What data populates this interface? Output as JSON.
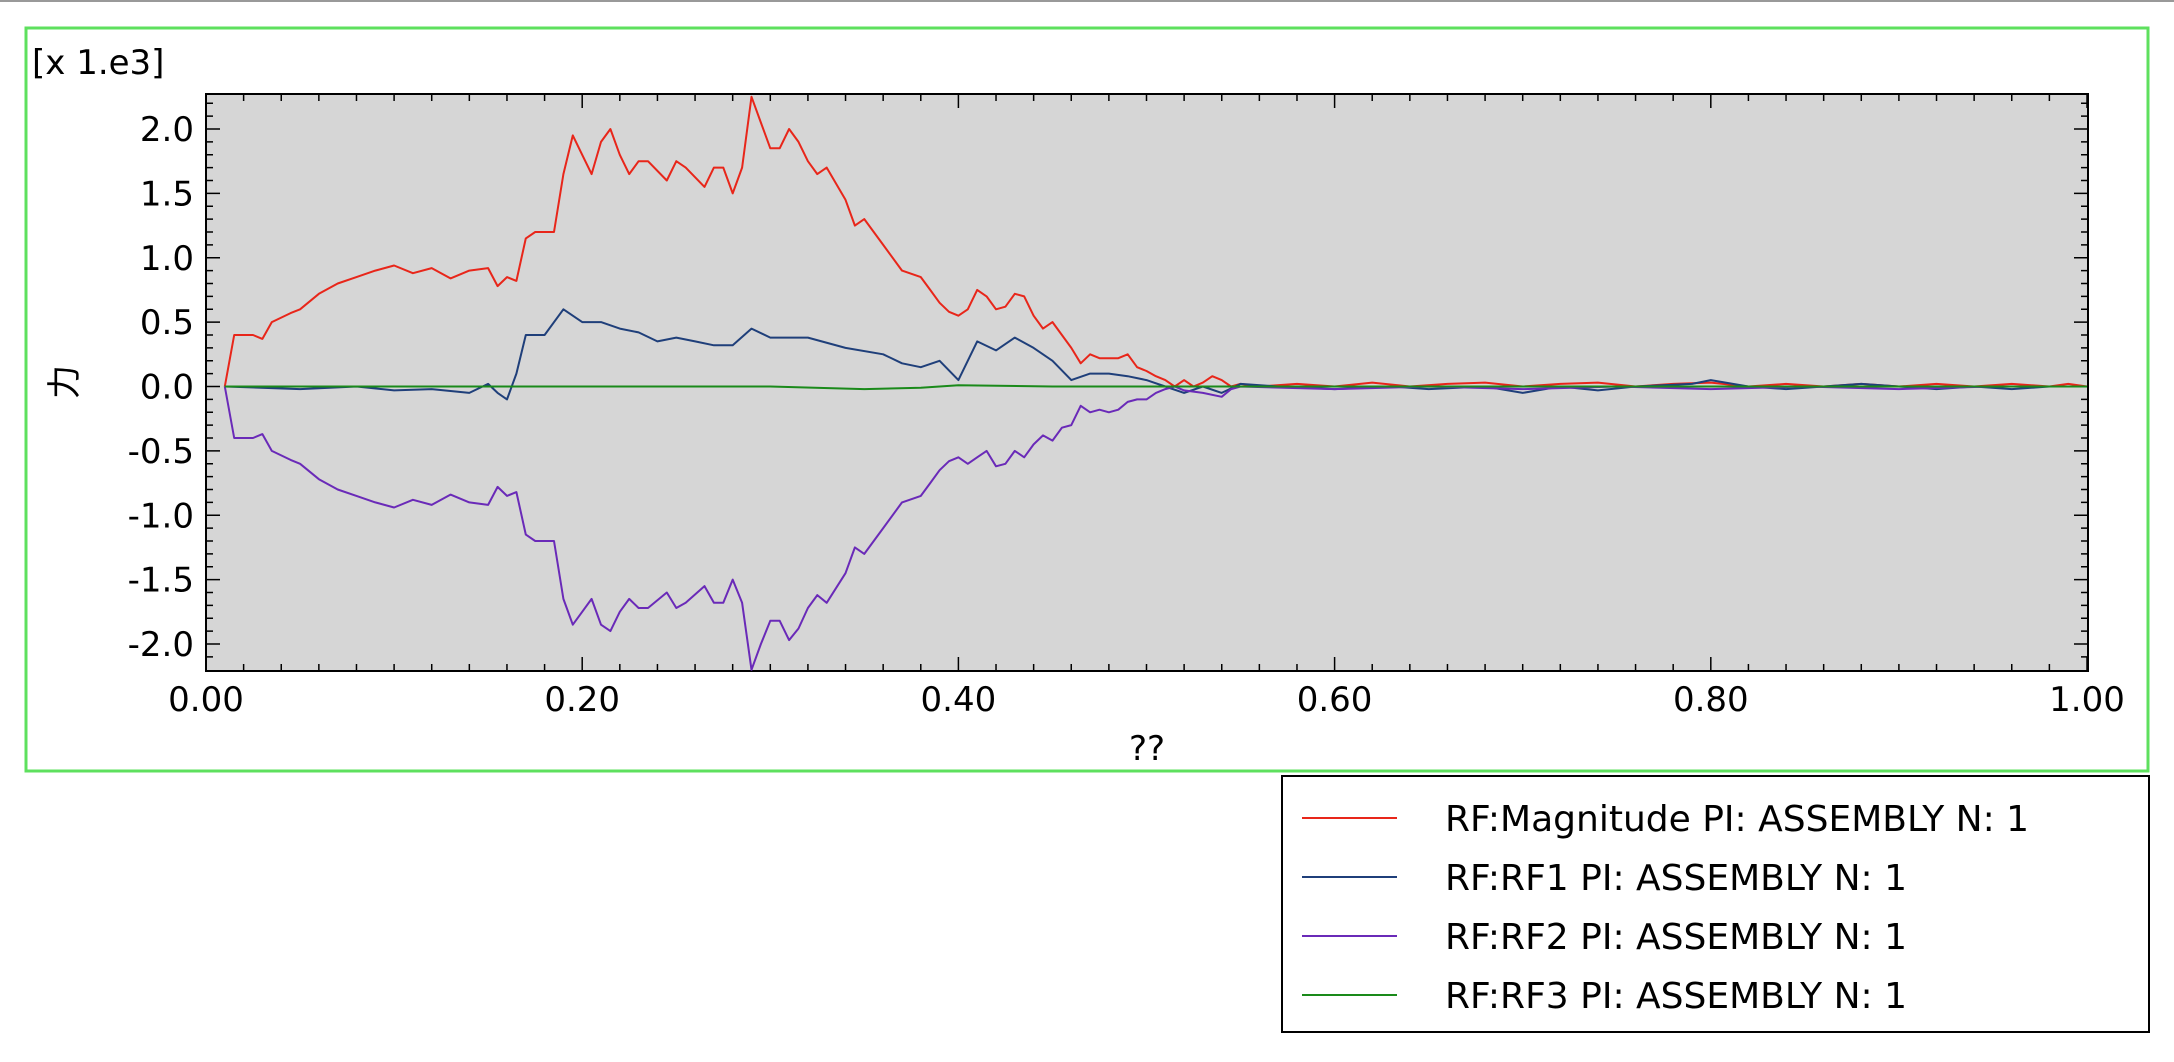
{
  "chart_data": {
    "type": "line",
    "scale_label": "[x 1.e3]",
    "xlabel": "??",
    "ylabel": "力",
    "xlim": [
      0.0,
      1.0
    ],
    "ylim": [
      -2.2,
      2.25
    ],
    "x_ticks": [
      "0.00",
      "0.20",
      "0.40",
      "0.60",
      "0.80",
      "1.00"
    ],
    "x_tick_values": [
      0.0,
      0.2,
      0.4,
      0.6,
      0.8,
      1.0
    ],
    "y_ticks": [
      "2.0",
      "1.5",
      "1.0",
      "0.5",
      "0.0",
      "-0.5",
      "-1.0",
      "-1.5",
      "-2.0"
    ],
    "y_tick_values": [
      2.0,
      1.5,
      1.0,
      0.5,
      0.0,
      -0.5,
      -1.0,
      -1.5,
      -2.0
    ],
    "grid": false,
    "legend_position": "bottom-right",
    "plot_background": "#d6d6d6",
    "frame_color": "#5ee05e",
    "series": [
      {
        "name": "RF:Magnitude PI: ASSEMBLY N: 1",
        "color": "#e8261a",
        "points": [
          [
            0.01,
            0.0
          ],
          [
            0.015,
            0.4
          ],
          [
            0.025,
            0.4
          ],
          [
            0.03,
            0.37
          ],
          [
            0.035,
            0.5
          ],
          [
            0.045,
            0.57
          ],
          [
            0.05,
            0.6
          ],
          [
            0.06,
            0.72
          ],
          [
            0.07,
            0.8
          ],
          [
            0.08,
            0.85
          ],
          [
            0.09,
            0.9
          ],
          [
            0.1,
            0.94
          ],
          [
            0.11,
            0.88
          ],
          [
            0.12,
            0.92
          ],
          [
            0.13,
            0.84
          ],
          [
            0.14,
            0.9
          ],
          [
            0.15,
            0.92
          ],
          [
            0.155,
            0.78
          ],
          [
            0.16,
            0.85
          ],
          [
            0.165,
            0.82
          ],
          [
            0.17,
            1.15
          ],
          [
            0.175,
            1.2
          ],
          [
            0.185,
            1.2
          ],
          [
            0.19,
            1.65
          ],
          [
            0.195,
            1.95
          ],
          [
            0.2,
            1.8
          ],
          [
            0.205,
            1.65
          ],
          [
            0.21,
            1.9
          ],
          [
            0.215,
            2.0
          ],
          [
            0.22,
            1.8
          ],
          [
            0.225,
            1.65
          ],
          [
            0.23,
            1.75
          ],
          [
            0.235,
            1.75
          ],
          [
            0.245,
            1.6
          ],
          [
            0.25,
            1.75
          ],
          [
            0.255,
            1.7
          ],
          [
            0.265,
            1.55
          ],
          [
            0.27,
            1.7
          ],
          [
            0.275,
            1.7
          ],
          [
            0.28,
            1.5
          ],
          [
            0.285,
            1.7
          ],
          [
            0.29,
            2.25
          ],
          [
            0.295,
            2.05
          ],
          [
            0.3,
            1.85
          ],
          [
            0.305,
            1.85
          ],
          [
            0.31,
            2.0
          ],
          [
            0.315,
            1.9
          ],
          [
            0.32,
            1.75
          ],
          [
            0.325,
            1.65
          ],
          [
            0.33,
            1.7
          ],
          [
            0.34,
            1.45
          ],
          [
            0.345,
            1.25
          ],
          [
            0.35,
            1.3
          ],
          [
            0.36,
            1.1
          ],
          [
            0.37,
            0.9
          ],
          [
            0.38,
            0.85
          ],
          [
            0.385,
            0.75
          ],
          [
            0.39,
            0.65
          ],
          [
            0.395,
            0.58
          ],
          [
            0.4,
            0.55
          ],
          [
            0.405,
            0.6
          ],
          [
            0.41,
            0.75
          ],
          [
            0.415,
            0.7
          ],
          [
            0.42,
            0.6
          ],
          [
            0.425,
            0.62
          ],
          [
            0.43,
            0.72
          ],
          [
            0.435,
            0.7
          ],
          [
            0.44,
            0.55
          ],
          [
            0.445,
            0.45
          ],
          [
            0.45,
            0.5
          ],
          [
            0.455,
            0.4
          ],
          [
            0.46,
            0.3
          ],
          [
            0.465,
            0.18
          ],
          [
            0.47,
            0.25
          ],
          [
            0.475,
            0.22
          ],
          [
            0.48,
            0.22
          ],
          [
            0.485,
            0.22
          ],
          [
            0.49,
            0.25
          ],
          [
            0.495,
            0.15
          ],
          [
            0.5,
            0.12
          ],
          [
            0.505,
            0.08
          ],
          [
            0.51,
            0.05
          ],
          [
            0.515,
            0.0
          ],
          [
            0.52,
            0.05
          ],
          [
            0.525,
            0.0
          ],
          [
            0.53,
            0.03
          ],
          [
            0.535,
            0.08
          ],
          [
            0.54,
            0.05
          ],
          [
            0.545,
            0.0
          ],
          [
            0.55,
            0.02
          ],
          [
            0.56,
            0.0
          ],
          [
            0.58,
            0.02
          ],
          [
            0.6,
            0.0
          ],
          [
            0.62,
            0.03
          ],
          [
            0.64,
            0.0
          ],
          [
            0.66,
            0.02
          ],
          [
            0.68,
            0.03
          ],
          [
            0.7,
            0.0
          ],
          [
            0.72,
            0.02
          ],
          [
            0.74,
            0.03
          ],
          [
            0.76,
            0.0
          ],
          [
            0.78,
            0.02
          ],
          [
            0.8,
            0.03
          ],
          [
            0.82,
            0.0
          ],
          [
            0.84,
            0.02
          ],
          [
            0.86,
            0.0
          ],
          [
            0.88,
            0.02
          ],
          [
            0.9,
            0.0
          ],
          [
            0.92,
            0.02
          ],
          [
            0.94,
            0.0
          ],
          [
            0.96,
            0.02
          ],
          [
            0.98,
            0.0
          ],
          [
            0.99,
            0.02
          ],
          [
            1.0,
            0.0
          ]
        ]
      },
      {
        "name": "RF:RF1 PI: ASSEMBLY N: 1",
        "color": "#1f3f7a",
        "points": [
          [
            0.01,
            0.0
          ],
          [
            0.05,
            -0.02
          ],
          [
            0.08,
            0.0
          ],
          [
            0.1,
            -0.03
          ],
          [
            0.12,
            -0.02
          ],
          [
            0.14,
            -0.05
          ],
          [
            0.15,
            0.02
          ],
          [
            0.155,
            -0.05
          ],
          [
            0.16,
            -0.1
          ],
          [
            0.165,
            0.1
          ],
          [
            0.17,
            0.4
          ],
          [
            0.18,
            0.4
          ],
          [
            0.19,
            0.6
          ],
          [
            0.2,
            0.5
          ],
          [
            0.21,
            0.5
          ],
          [
            0.22,
            0.45
          ],
          [
            0.23,
            0.42
          ],
          [
            0.24,
            0.35
          ],
          [
            0.25,
            0.38
          ],
          [
            0.26,
            0.35
          ],
          [
            0.27,
            0.32
          ],
          [
            0.28,
            0.32
          ],
          [
            0.29,
            0.45
          ],
          [
            0.3,
            0.38
          ],
          [
            0.32,
            0.38
          ],
          [
            0.34,
            0.3
          ],
          [
            0.36,
            0.25
          ],
          [
            0.37,
            0.18
          ],
          [
            0.38,
            0.15
          ],
          [
            0.39,
            0.2
          ],
          [
            0.4,
            0.05
          ],
          [
            0.41,
            0.35
          ],
          [
            0.42,
            0.28
          ],
          [
            0.43,
            0.38
          ],
          [
            0.44,
            0.3
          ],
          [
            0.45,
            0.2
          ],
          [
            0.46,
            0.05
          ],
          [
            0.47,
            0.1
          ],
          [
            0.48,
            0.1
          ],
          [
            0.49,
            0.08
          ],
          [
            0.5,
            0.05
          ],
          [
            0.51,
            0.0
          ],
          [
            0.52,
            -0.05
          ],
          [
            0.53,
            0.0
          ],
          [
            0.54,
            -0.05
          ],
          [
            0.55,
            0.02
          ],
          [
            0.57,
            0.0
          ],
          [
            0.6,
            -0.02
          ],
          [
            0.63,
            0.0
          ],
          [
            0.65,
            -0.02
          ],
          [
            0.68,
            0.0
          ],
          [
            0.7,
            -0.05
          ],
          [
            0.72,
            0.0
          ],
          [
            0.74,
            -0.03
          ],
          [
            0.76,
            0.0
          ],
          [
            0.79,
            0.02
          ],
          [
            0.8,
            0.05
          ],
          [
            0.82,
            0.0
          ],
          [
            0.84,
            -0.02
          ],
          [
            0.86,
            0.0
          ],
          [
            0.88,
            0.02
          ],
          [
            0.9,
            0.0
          ],
          [
            0.92,
            -0.02
          ],
          [
            0.94,
            0.0
          ],
          [
            0.96,
            -0.02
          ],
          [
            0.98,
            0.0
          ],
          [
            1.0,
            0.0
          ]
        ]
      },
      {
        "name": "RF:RF2 PI: ASSEMBLY N: 1",
        "color": "#6a2ab8",
        "points": [
          [
            0.01,
            0.0
          ],
          [
            0.015,
            -0.4
          ],
          [
            0.025,
            -0.4
          ],
          [
            0.03,
            -0.37
          ],
          [
            0.035,
            -0.5
          ],
          [
            0.045,
            -0.57
          ],
          [
            0.05,
            -0.6
          ],
          [
            0.06,
            -0.72
          ],
          [
            0.07,
            -0.8
          ],
          [
            0.08,
            -0.85
          ],
          [
            0.09,
            -0.9
          ],
          [
            0.1,
            -0.94
          ],
          [
            0.11,
            -0.88
          ],
          [
            0.12,
            -0.92
          ],
          [
            0.13,
            -0.84
          ],
          [
            0.14,
            -0.9
          ],
          [
            0.15,
            -0.92
          ],
          [
            0.155,
            -0.78
          ],
          [
            0.16,
            -0.85
          ],
          [
            0.165,
            -0.82
          ],
          [
            0.17,
            -1.15
          ],
          [
            0.175,
            -1.2
          ],
          [
            0.185,
            -1.2
          ],
          [
            0.19,
            -1.65
          ],
          [
            0.195,
            -1.85
          ],
          [
            0.2,
            -1.75
          ],
          [
            0.205,
            -1.65
          ],
          [
            0.21,
            -1.85
          ],
          [
            0.215,
            -1.9
          ],
          [
            0.22,
            -1.75
          ],
          [
            0.225,
            -1.65
          ],
          [
            0.23,
            -1.72
          ],
          [
            0.235,
            -1.72
          ],
          [
            0.245,
            -1.6
          ],
          [
            0.25,
            -1.72
          ],
          [
            0.255,
            -1.68
          ],
          [
            0.265,
            -1.55
          ],
          [
            0.27,
            -1.68
          ],
          [
            0.275,
            -1.68
          ],
          [
            0.28,
            -1.5
          ],
          [
            0.285,
            -1.68
          ],
          [
            0.29,
            -2.2
          ],
          [
            0.295,
            -2.0
          ],
          [
            0.3,
            -1.82
          ],
          [
            0.305,
            -1.82
          ],
          [
            0.31,
            -1.97
          ],
          [
            0.315,
            -1.88
          ],
          [
            0.32,
            -1.72
          ],
          [
            0.325,
            -1.62
          ],
          [
            0.33,
            -1.68
          ],
          [
            0.34,
            -1.45
          ],
          [
            0.345,
            -1.25
          ],
          [
            0.35,
            -1.3
          ],
          [
            0.36,
            -1.1
          ],
          [
            0.37,
            -0.9
          ],
          [
            0.38,
            -0.85
          ],
          [
            0.385,
            -0.75
          ],
          [
            0.39,
            -0.65
          ],
          [
            0.395,
            -0.58
          ],
          [
            0.4,
            -0.55
          ],
          [
            0.405,
            -0.6
          ],
          [
            0.41,
            -0.55
          ],
          [
            0.415,
            -0.5
          ],
          [
            0.42,
            -0.62
          ],
          [
            0.425,
            -0.6
          ],
          [
            0.43,
            -0.5
          ],
          [
            0.435,
            -0.55
          ],
          [
            0.44,
            -0.45
          ],
          [
            0.445,
            -0.38
          ],
          [
            0.45,
            -0.42
          ],
          [
            0.455,
            -0.32
          ],
          [
            0.46,
            -0.3
          ],
          [
            0.465,
            -0.15
          ],
          [
            0.47,
            -0.2
          ],
          [
            0.475,
            -0.18
          ],
          [
            0.48,
            -0.2
          ],
          [
            0.485,
            -0.18
          ],
          [
            0.49,
            -0.12
          ],
          [
            0.495,
            -0.1
          ],
          [
            0.5,
            -0.1
          ],
          [
            0.505,
            -0.05
          ],
          [
            0.51,
            -0.02
          ],
          [
            0.515,
            0.0
          ],
          [
            0.52,
            -0.03
          ],
          [
            0.53,
            -0.05
          ],
          [
            0.54,
            -0.08
          ],
          [
            0.545,
            -0.02
          ],
          [
            0.55,
            0.0
          ],
          [
            0.6,
            -0.02
          ],
          [
            0.65,
            0.0
          ],
          [
            0.7,
            -0.02
          ],
          [
            0.75,
            0.0
          ],
          [
            0.8,
            -0.02
          ],
          [
            0.85,
            0.0
          ],
          [
            0.9,
            -0.02
          ],
          [
            0.95,
            0.0
          ],
          [
            1.0,
            0.0
          ]
        ]
      },
      {
        "name": "RF:RF3 PI: ASSEMBLY N: 1",
        "color": "#1a8a1a",
        "points": [
          [
            0.01,
            0.0
          ],
          [
            0.1,
            0.0
          ],
          [
            0.2,
            0.0
          ],
          [
            0.3,
            0.0
          ],
          [
            0.35,
            -0.02
          ],
          [
            0.38,
            -0.01
          ],
          [
            0.4,
            0.01
          ],
          [
            0.45,
            0.0
          ],
          [
            0.5,
            0.0
          ],
          [
            0.6,
            0.0
          ],
          [
            0.7,
            0.0
          ],
          [
            0.8,
            0.0
          ],
          [
            0.9,
            0.0
          ],
          [
            1.0,
            0.0
          ]
        ]
      }
    ]
  }
}
